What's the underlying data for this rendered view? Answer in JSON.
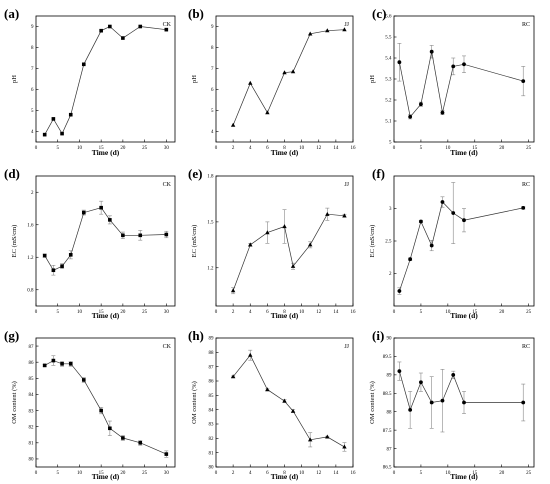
{
  "figure": {
    "panels": [
      {
        "letter": "(a)",
        "tag": "CK"
      },
      {
        "letter": "(b)",
        "tag": "JJ"
      },
      {
        "letter": "(c)",
        "tag": "RC"
      },
      {
        "letter": "(d)",
        "tag": "CK"
      },
      {
        "letter": "(e)",
        "tag": "JJ"
      },
      {
        "letter": "(f)",
        "tag": "RC"
      },
      {
        "letter": "(g)",
        "tag": "CK"
      },
      {
        "letter": "(h)",
        "tag": "JJ"
      },
      {
        "letter": "(i)",
        "tag": "RC"
      }
    ]
  },
  "chart_data": [
    {
      "type": "line",
      "marker": "square",
      "xlabel": "Time (d)",
      "ylabel": "pH",
      "xlim": [
        0,
        32
      ],
      "ylim": [
        3.5,
        9.5
      ],
      "xticks": [
        0,
        5,
        10,
        15,
        20,
        25,
        30
      ],
      "yticks": [
        4,
        5,
        6,
        7,
        8,
        9
      ],
      "x": [
        2,
        4,
        6,
        8,
        11,
        15,
        17,
        20,
        24,
        30
      ],
      "y": [
        3.85,
        4.6,
        3.9,
        4.8,
        7.2,
        8.8,
        9.0,
        8.45,
        9.0,
        8.85
      ]
    },
    {
      "type": "line",
      "marker": "triangle",
      "xlabel": "Time (d)",
      "ylabel": "pH",
      "xlim": [
        0,
        16
      ],
      "ylim": [
        3.5,
        9.5
      ],
      "xticks": [
        0,
        2,
        4,
        6,
        8,
        10,
        12,
        14,
        16
      ],
      "yticks": [
        4,
        5,
        6,
        7,
        8,
        9
      ],
      "x": [
        2,
        4,
        6,
        8,
        9,
        11,
        13,
        15
      ],
      "y": [
        4.3,
        6.3,
        4.9,
        6.8,
        6.85,
        8.65,
        8.8,
        8.85
      ]
    },
    {
      "type": "line",
      "marker": "circle",
      "xlabel": "Time (d)",
      "ylabel": "pH",
      "xlim": [
        0,
        26
      ],
      "ylim": [
        5.0,
        5.6
      ],
      "xticks": [
        0,
        5,
        10,
        15,
        20,
        25
      ],
      "yticks": [
        5.0,
        5.1,
        5.2,
        5.3,
        5.4,
        5.5,
        5.6
      ],
      "x": [
        1,
        3,
        5,
        7,
        9,
        11,
        13,
        24
      ],
      "y": [
        5.38,
        5.12,
        5.18,
        5.43,
        5.14,
        5.36,
        5.37,
        5.29
      ],
      "err": [
        0.09,
        0.01,
        0.01,
        0.03,
        0.01,
        0.04,
        0.04,
        0.07
      ]
    },
    {
      "type": "line",
      "marker": "square",
      "xlabel": "Time (d)",
      "ylabel": "EC (mS/cm)",
      "xlim": [
        0,
        32
      ],
      "ylim": [
        0.6,
        2.2
      ],
      "xticks": [
        0,
        5,
        10,
        15,
        20,
        25,
        30
      ],
      "yticks": [
        0.8,
        1.2,
        1.6,
        2.0
      ],
      "x": [
        2,
        4,
        6,
        8,
        11,
        15,
        17,
        20,
        24,
        30
      ],
      "y": [
        1.22,
        1.04,
        1.09,
        1.23,
        1.75,
        1.81,
        1.66,
        1.47,
        1.47,
        1.48
      ],
      "err": [
        0.02,
        0.06,
        0.03,
        0.05,
        0.03,
        0.08,
        0.05,
        0.04,
        0.06,
        0.04
      ]
    },
    {
      "type": "line",
      "marker": "triangle",
      "xlabel": "Time (d)",
      "ylabel": "EC (mS/cm)",
      "xlim": [
        0,
        16
      ],
      "ylim": [
        0.95,
        1.8
      ],
      "xticks": [
        0,
        2,
        4,
        6,
        8,
        10,
        12,
        14,
        16
      ],
      "yticks": [
        1.2,
        1.5,
        1.8
      ],
      "x": [
        2,
        4,
        6,
        8,
        9,
        11,
        13,
        15
      ],
      "y": [
        1.05,
        1.35,
        1.43,
        1.47,
        1.21,
        1.35,
        1.55,
        1.54
      ],
      "err": [
        0.02,
        0.01,
        0.07,
        0.11,
        0.02,
        0.02,
        0.04,
        0.01
      ]
    },
    {
      "type": "line",
      "marker": "circle",
      "xlabel": "Time (d)",
      "ylabel": "EC (mS/cm)",
      "xlim": [
        0,
        26
      ],
      "ylim": [
        1.5,
        3.5
      ],
      "xticks": [
        0,
        5,
        10,
        15,
        20,
        25
      ],
      "yticks": [
        2.0,
        2.5,
        3.0
      ],
      "x": [
        1,
        3,
        5,
        7,
        9,
        11,
        13,
        24
      ],
      "y": [
        1.73,
        2.22,
        2.8,
        2.43,
        3.1,
        2.93,
        2.82,
        3.01
      ],
      "err": [
        0.05,
        0.02,
        0.02,
        0.08,
        0.08,
        0.47,
        0.18,
        0.02
      ]
    },
    {
      "type": "line",
      "marker": "square",
      "xlabel": "Time (d)",
      "ylabel": "OM content (%)",
      "xlim": [
        0,
        32
      ],
      "ylim": [
        79.5,
        87.5
      ],
      "xticks": [
        0,
        5,
        10,
        15,
        20,
        25,
        30
      ],
      "yticks": [
        80,
        81,
        82,
        83,
        84,
        85,
        86,
        87
      ],
      "x": [
        2,
        4,
        6,
        8,
        11,
        15,
        17,
        20,
        24,
        30
      ],
      "y": [
        85.8,
        86.1,
        85.9,
        85.9,
        84.9,
        83.0,
        81.9,
        81.3,
        81.0,
        80.3
      ],
      "err": [
        0.05,
        0.3,
        0.15,
        0.15,
        0.15,
        0.2,
        0.45,
        0.15,
        0.15,
        0.2
      ]
    },
    {
      "type": "line",
      "marker": "triangle",
      "xlabel": "Time (d)",
      "ylabel": "OM content (%)",
      "xlim": [
        0,
        16
      ],
      "ylim": [
        80,
        89
      ],
      "xticks": [
        0,
        2,
        4,
        6,
        8,
        10,
        12,
        14,
        16
      ],
      "yticks": [
        80,
        81,
        82,
        83,
        84,
        85,
        86,
        87,
        88,
        89
      ],
      "x": [
        2,
        4,
        6,
        8,
        9,
        11,
        13,
        15
      ],
      "y": [
        86.3,
        87.8,
        85.4,
        84.6,
        83.9,
        81.9,
        82.1,
        81.4
      ],
      "err": [
        0.05,
        0.35,
        0.05,
        0.1,
        0.1,
        0.5,
        0.05,
        0.3
      ]
    },
    {
      "type": "line",
      "marker": "circle",
      "xlabel": "Time (d)",
      "ylabel": "OM content (%)",
      "xlim": [
        0,
        26
      ],
      "ylim": [
        86.5,
        90.0
      ],
      "xticks": [
        0,
        5,
        10,
        15,
        20,
        25
      ],
      "yticks": [
        86.5,
        87.0,
        87.5,
        88.0,
        88.5,
        89.0,
        89.5,
        90.0
      ],
      "x": [
        1,
        3,
        5,
        7,
        9,
        11,
        13,
        24
      ],
      "y": [
        89.1,
        88.05,
        88.8,
        88.25,
        88.3,
        89.0,
        88.25,
        88.25
      ],
      "err": [
        0.25,
        0.5,
        0.25,
        0.7,
        0.85,
        0.1,
        0.3,
        0.5
      ]
    }
  ]
}
